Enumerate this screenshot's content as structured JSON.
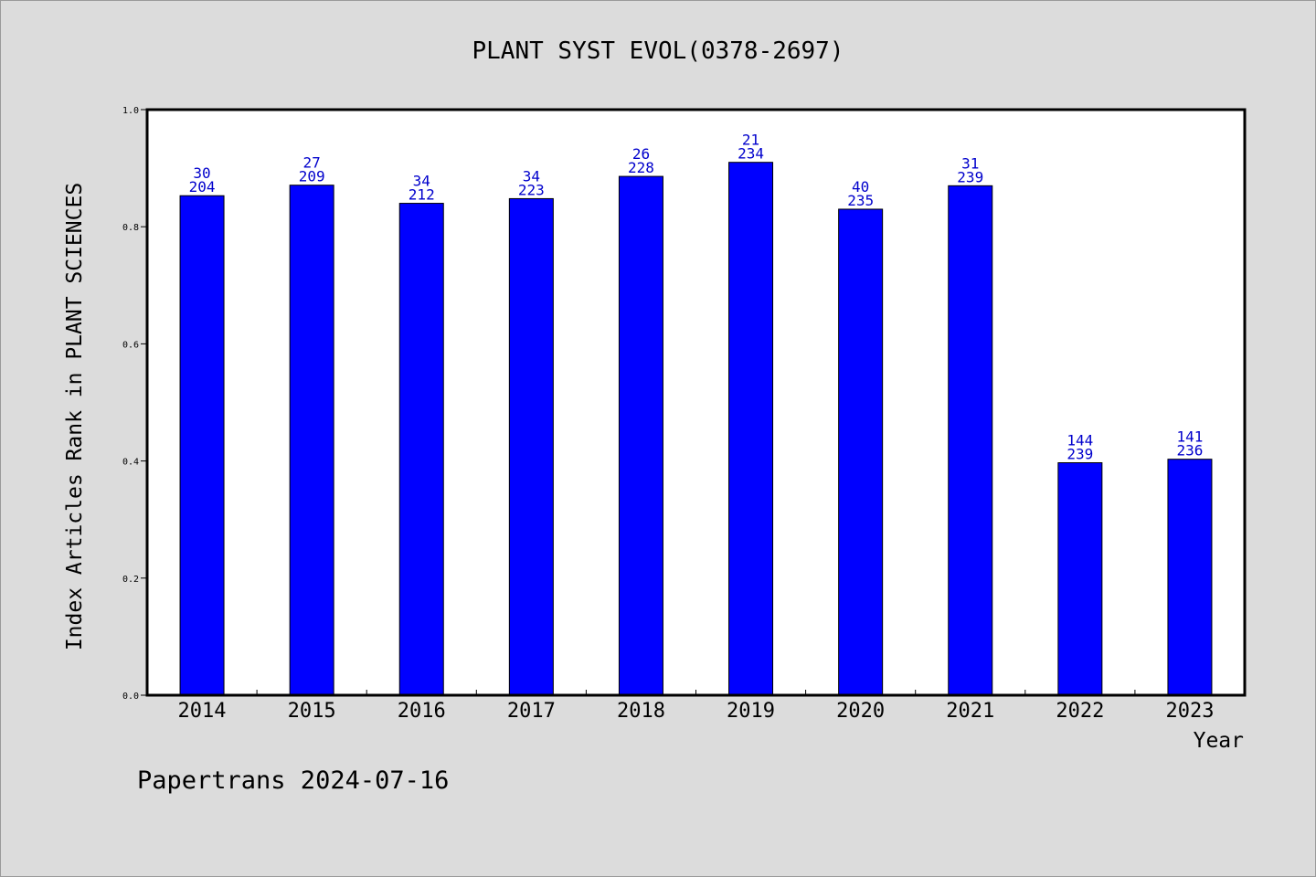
{
  "chart_data": {
    "type": "bar",
    "title": "PLANT SYST EVOL(0378-2697)",
    "xlabel": "Year",
    "ylabel": "Index Articles Rank in PLANT SCIENCES",
    "ylim": [
      0.0,
      1.0
    ],
    "yticks": [
      "0.0",
      "0.2",
      "0.4",
      "0.6",
      "0.8",
      "1.0"
    ],
    "grid": false,
    "bar_color": "#0000ff",
    "label_color": "#0000cc",
    "categories": [
      "2014",
      "2015",
      "2016",
      "2017",
      "2018",
      "2019",
      "2020",
      "2021",
      "2022",
      "2023"
    ],
    "values": [
      0.853,
      0.871,
      0.84,
      0.848,
      0.886,
      0.91,
      0.83,
      0.87,
      0.397,
      0.403
    ],
    "rank": [
      "30",
      "27",
      "34",
      "34",
      "26",
      "21",
      "40",
      "31",
      "144",
      "141"
    ],
    "total": [
      "204",
      "209",
      "212",
      "223",
      "228",
      "234",
      "235",
      "239",
      "239",
      "236"
    ]
  },
  "footer": "Papertrans 2024-07-16"
}
